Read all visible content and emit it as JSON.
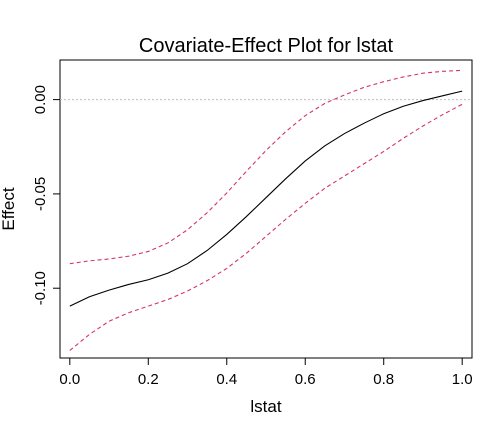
{
  "chart_data": {
    "type": "line",
    "title": "Covariate-Effect Plot for lstat",
    "xlabel": "lstat",
    "ylabel": "Effect",
    "xlim": [
      -0.025,
      1.025
    ],
    "ylim": [
      -0.137,
      0.021
    ],
    "x_ticks": [
      {
        "value": 0.0,
        "label": "0.0"
      },
      {
        "value": 0.2,
        "label": "0.2"
      },
      {
        "value": 0.4,
        "label": "0.4"
      },
      {
        "value": 0.6,
        "label": "0.6"
      },
      {
        "value": 0.8,
        "label": "0.8"
      },
      {
        "value": 1.0,
        "label": "1.0"
      }
    ],
    "y_ticks": [
      {
        "value": 0.0,
        "label": "0.00"
      },
      {
        "value": -0.05,
        "label": "-0.05"
      },
      {
        "value": -0.1,
        "label": "-0.10"
      }
    ],
    "reference_line": {
      "y": 0.0,
      "style": "dotted",
      "color": "#bdbdbd"
    },
    "grid": false,
    "colors": {
      "effect": "#000000",
      "band": "#d6336c"
    },
    "x": [
      0.0,
      0.05,
      0.1,
      0.15,
      0.2,
      0.25,
      0.3,
      0.35,
      0.4,
      0.45,
      0.5,
      0.55,
      0.6,
      0.65,
      0.7,
      0.75,
      0.8,
      0.85,
      0.9,
      0.95,
      1.0
    ],
    "series": [
      {
        "role": "effect",
        "values": [
          -0.1095,
          -0.1045,
          -0.101,
          -0.098,
          -0.0955,
          -0.092,
          -0.087,
          -0.08,
          -0.0715,
          -0.062,
          -0.052,
          -0.042,
          -0.0325,
          -0.0245,
          -0.018,
          -0.0125,
          -0.0075,
          -0.0035,
          -0.0005,
          0.002,
          0.0045
        ]
      },
      {
        "role": "upper",
        "values": [
          -0.087,
          -0.0855,
          -0.0845,
          -0.083,
          -0.0805,
          -0.076,
          -0.069,
          -0.06,
          -0.0495,
          -0.038,
          -0.027,
          -0.017,
          -0.0085,
          -0.002,
          0.0025,
          0.0065,
          0.0095,
          0.012,
          0.014,
          0.015,
          0.0155
        ]
      },
      {
        "role": "lower",
        "values": [
          -0.133,
          -0.1245,
          -0.1175,
          -0.113,
          -0.1095,
          -0.106,
          -0.1015,
          -0.096,
          -0.0895,
          -0.0815,
          -0.0725,
          -0.0635,
          -0.055,
          -0.047,
          -0.0405,
          -0.034,
          -0.0275,
          -0.0205,
          -0.014,
          -0.008,
          -0.0025
        ]
      }
    ]
  }
}
